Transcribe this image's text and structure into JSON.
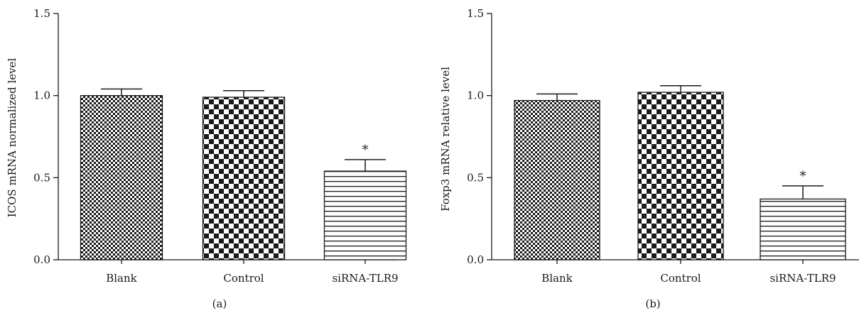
{
  "figure": {
    "panels": [
      "(a)",
      "(b)"
    ]
  },
  "chart_data": [
    {
      "type": "bar",
      "panel_label": "(a)",
      "categories": [
        "Blank",
        "Control",
        "siRNA-TLR9"
      ],
      "values": [
        1.0,
        0.99,
        0.54
      ],
      "error": [
        0.04,
        0.04,
        0.07
      ],
      "significance": [
        "",
        "",
        "*"
      ],
      "patterns": [
        "fine-check",
        "checker",
        "hstripe"
      ],
      "ylabel": "ICOS mRNA normalized level",
      "xlabel": "",
      "ylim": [
        0,
        1.5
      ],
      "yticks": [
        "0.0",
        "0.5",
        "1.0",
        "1.5"
      ],
      "grid": false,
      "bar_color": "#1a1a1a"
    },
    {
      "type": "bar",
      "panel_label": "(b)",
      "categories": [
        "Blank",
        "Control",
        "siRNA-TLR9"
      ],
      "values": [
        0.97,
        1.02,
        0.37
      ],
      "error": [
        0.04,
        0.04,
        0.08
      ],
      "significance": [
        "",
        "",
        "*"
      ],
      "patterns": [
        "fine-check",
        "checker",
        "hstripe"
      ],
      "ylabel": "Foxp3 mRNA relative level",
      "xlabel": "",
      "ylim": [
        0,
        1.5
      ],
      "yticks": [
        "0.0",
        "0.5",
        "1.0",
        "1.5"
      ],
      "grid": false,
      "bar_color": "#1a1a1a"
    }
  ]
}
